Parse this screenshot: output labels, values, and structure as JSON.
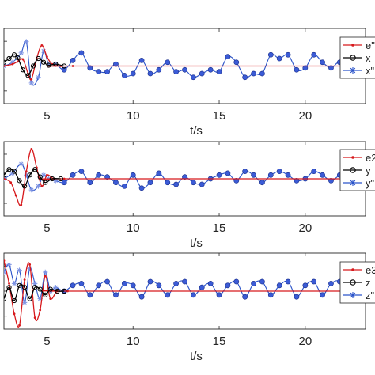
{
  "colors": {
    "error": "#d7191c",
    "actual": "#000000",
    "reference": "#2a53c9",
    "marker_fill": "#3b5bd6",
    "reference_light": "#7d93e3",
    "axis": "#262626",
    "background": "#ffffff"
  },
  "chart_data": [
    {
      "type": "line",
      "xlabel": "t/s",
      "ylabel": "",
      "xlim": [
        2.5,
        23.5
      ],
      "ylim": [
        -1.0,
        1.0
      ],
      "xticks": [
        5,
        10,
        15,
        20
      ],
      "xtick_labels": [
        "5",
        "10",
        "15",
        "20"
      ],
      "legend": {
        "placement": "right",
        "entries": [
          "e\"",
          "x",
          "x\""
        ]
      },
      "series": [
        {
          "name": "e\"",
          "role": "error",
          "x": [
            2.5,
            3.0,
            3.3,
            3.6,
            3.9,
            4.1,
            4.4,
            4.7,
            5.0,
            5.3,
            5.8,
            6.5,
            23.5
          ],
          "y": [
            0.0,
            0.05,
            0.12,
            0.18,
            -0.2,
            -0.35,
            0.2,
            0.55,
            0.25,
            0.05,
            0.0,
            0.0,
            0.0
          ]
        },
        {
          "name": "x",
          "role": "actual",
          "x": [
            2.5,
            2.8,
            3.1,
            3.3,
            3.6,
            3.9,
            4.2,
            4.5,
            4.8,
            5.1,
            5.5,
            6.0
          ],
          "y": [
            0.1,
            0.2,
            0.3,
            0.22,
            -0.1,
            -0.25,
            0.0,
            0.2,
            0.1,
            0.02,
            0.05,
            0.0
          ]
        },
        {
          "name": "x\"",
          "role": "reference",
          "x": [
            2.5,
            3.0,
            3.5,
            3.8,
            4.1,
            4.5,
            4.8,
            5.1,
            5.5,
            6.0,
            6.5,
            7.0,
            7.5,
            8.0,
            8.5,
            9.0,
            9.5,
            10.0,
            10.5,
            11.0,
            11.5,
            12.0,
            12.5,
            13.0,
            13.5,
            14.0,
            14.5,
            15.0,
            15.5,
            16.0,
            16.5,
            17.0,
            17.5,
            18.0,
            18.5,
            19.0,
            19.5,
            20.0,
            20.5,
            21.0,
            21.5,
            22.0,
            22.5,
            23.0,
            23.5
          ],
          "y": [
            0.0,
            0.1,
            0.35,
            0.65,
            -0.45,
            -0.3,
            0.4,
            0.05,
            0.05,
            -0.1,
            0.15,
            0.35,
            -0.05,
            -0.15,
            -0.15,
            0.05,
            -0.25,
            -0.2,
            0.15,
            -0.2,
            -0.1,
            0.1,
            -0.15,
            -0.1,
            -0.3,
            -0.2,
            -0.1,
            -0.15,
            0.25,
            0.1,
            -0.3,
            -0.2,
            -0.2,
            0.3,
            0.2,
            0.3,
            -0.1,
            -0.05,
            0.3,
            0.1,
            -0.05,
            0.1,
            -0.25,
            0.3,
            0.15
          ]
        }
      ]
    },
    {
      "type": "line",
      "xlabel": "t/s",
      "ylabel": "",
      "xlim": [
        2.5,
        23.5
      ],
      "ylim": [
        -1.0,
        1.0
      ],
      "xticks": [
        5,
        10,
        15,
        20
      ],
      "xtick_labels": [
        "5",
        "10",
        "15",
        "20"
      ],
      "legend": {
        "placement": "right",
        "entries": [
          "e2",
          "y",
          "y\""
        ]
      },
      "series": [
        {
          "name": "e2",
          "role": "error",
          "x": [
            2.5,
            2.9,
            3.2,
            3.5,
            3.8,
            4.1,
            4.4,
            4.7,
            5.0,
            5.4,
            6.0,
            23.5
          ],
          "y": [
            0.0,
            -0.1,
            -0.45,
            -0.7,
            0.2,
            0.8,
            0.3,
            -0.2,
            0.1,
            0.0,
            0.0,
            0.0
          ]
        },
        {
          "name": "y",
          "role": "actual",
          "x": [
            2.5,
            2.8,
            3.1,
            3.4,
            3.7,
            4.0,
            4.3,
            4.6,
            4.9,
            5.3,
            5.8
          ],
          "y": [
            0.1,
            0.25,
            0.2,
            -0.05,
            -0.2,
            0.1,
            0.25,
            0.05,
            -0.1,
            0.0,
            0.0
          ]
        },
        {
          "name": "y\"",
          "role": "reference",
          "x": [
            2.5,
            3.0,
            3.5,
            3.8,
            4.1,
            4.5,
            4.8,
            5.1,
            5.5,
            6.0,
            6.5,
            7.0,
            7.5,
            8.0,
            8.5,
            9.0,
            9.5,
            10.0,
            10.5,
            11.0,
            11.5,
            12.0,
            12.5,
            13.0,
            13.5,
            14.0,
            14.5,
            15.0,
            15.5,
            16.0,
            16.5,
            17.0,
            17.5,
            18.0,
            18.5,
            19.0,
            19.5,
            20.0,
            20.5,
            21.0,
            21.5,
            22.0,
            22.5,
            23.0,
            23.5
          ],
          "y": [
            0.0,
            0.15,
            0.4,
            0.1,
            -0.3,
            -0.2,
            0.1,
            0.0,
            -0.05,
            -0.1,
            0.1,
            0.2,
            -0.1,
            0.1,
            0.05,
            -0.1,
            -0.2,
            0.1,
            -0.25,
            -0.1,
            0.15,
            -0.1,
            -0.15,
            0.05,
            -0.1,
            -0.15,
            0.0,
            0.1,
            0.15,
            -0.05,
            0.2,
            0.1,
            -0.1,
            0.1,
            0.2,
            0.1,
            -0.05,
            0.0,
            0.2,
            0.1,
            -0.05,
            0.1,
            0.2,
            -0.05,
            0.15
          ]
        }
      ]
    },
    {
      "type": "line",
      "xlabel": "t/s",
      "ylabel": "",
      "xlim": [
        2.5,
        23.5
      ],
      "ylim": [
        -1.0,
        1.0
      ],
      "xticks": [
        5,
        10,
        15,
        20
      ],
      "xtick_labels": [
        "5",
        "10",
        "15",
        "20"
      ],
      "legend": {
        "placement": "right",
        "entries": [
          "e3",
          "z",
          "z\""
        ]
      },
      "series": [
        {
          "name": "e3",
          "role": "error",
          "x": [
            2.5,
            2.8,
            3.1,
            3.4,
            3.7,
            4.0,
            4.3,
            4.6,
            4.9,
            5.2,
            5.6,
            6.2,
            23.5
          ],
          "y": [
            0.8,
            0.2,
            -0.6,
            -0.9,
            0.3,
            0.7,
            -0.7,
            -0.5,
            0.4,
            -0.2,
            0.0,
            0.0,
            0.0
          ]
        },
        {
          "name": "z",
          "role": "actual",
          "x": [
            2.5,
            2.8,
            3.1,
            3.4,
            3.7,
            4.0,
            4.3,
            4.6,
            4.9,
            5.2,
            5.6,
            6.0
          ],
          "y": [
            -0.2,
            0.1,
            -0.25,
            0.15,
            0.1,
            -0.2,
            0.1,
            0.05,
            -0.1,
            0.05,
            0.0,
            0.0
          ]
        },
        {
          "name": "z\"",
          "role": "reference",
          "x": [
            2.5,
            2.8,
            3.1,
            3.4,
            3.7,
            4.0,
            4.3,
            4.6,
            4.9,
            5.2,
            5.5,
            6.0,
            6.5,
            7.0,
            7.5,
            8.0,
            8.5,
            9.0,
            9.5,
            10.0,
            10.5,
            11.0,
            11.5,
            12.0,
            12.5,
            13.0,
            13.5,
            14.0,
            14.5,
            15.0,
            15.5,
            16.0,
            16.5,
            17.0,
            17.5,
            18.0,
            18.5,
            19.0,
            19.5,
            20.0,
            20.5,
            21.0,
            21.5,
            22.0,
            22.5,
            23.0,
            23.5
          ],
          "y": [
            0.5,
            0.7,
            0.2,
            0.55,
            -0.3,
            0.6,
            0.2,
            -0.2,
            0.5,
            0.0,
            0.1,
            0.0,
            0.15,
            0.2,
            -0.1,
            0.15,
            0.25,
            -0.1,
            0.2,
            0.15,
            -0.15,
            0.25,
            0.15,
            -0.1,
            0.2,
            0.25,
            -0.1,
            0.1,
            0.2,
            -0.1,
            0.15,
            0.25,
            -0.15,
            0.2,
            0.25,
            -0.1,
            0.15,
            0.25,
            -0.15,
            0.15,
            0.25,
            -0.1,
            0.2,
            0.25,
            -0.15,
            0.2,
            0.25
          ]
        }
      ]
    }
  ]
}
